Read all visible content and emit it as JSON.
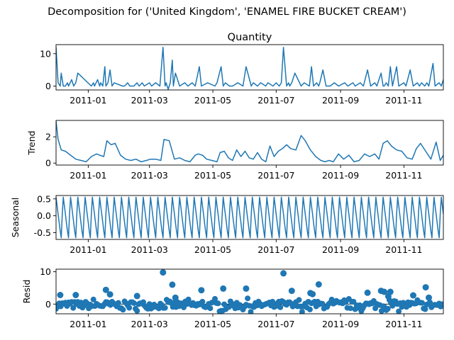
{
  "title": "Decomposition for ('United Kingdom', 'ENAMEL FIRE BUCKET CREAM')",
  "colors": {
    "line": "#1f77b4",
    "marker": "#1f77b4",
    "axis": "#000000",
    "zero": "#000000"
  },
  "chart_data": [
    {
      "type": "line",
      "title": "Quantity",
      "ylabel": "",
      "xlim": [
        "2010-12-01",
        "2011-12-09"
      ],
      "ylim": [
        -1.2,
        12.8
      ],
      "yticks": [
        0,
        10
      ],
      "xticks": [
        "2011-01",
        "2011-03",
        "2011-05",
        "2011-07",
        "2011-09",
        "2011-11"
      ],
      "x": [
        "2010-12-01",
        "2010-12-03",
        "2010-12-05",
        "2010-12-06",
        "2010-12-08",
        "2010-12-10",
        "2010-12-12",
        "2010-12-13",
        "2010-12-16",
        "2010-12-18",
        "2010-12-20",
        "2010-12-22",
        "2011-01-04",
        "2011-01-06",
        "2011-01-07",
        "2011-01-10",
        "2011-01-12",
        "2011-01-13",
        "2011-01-15",
        "2011-01-17",
        "2011-01-18",
        "2011-01-20",
        "2011-01-22",
        "2011-01-24",
        "2011-01-26",
        "2011-02-03",
        "2011-02-05",
        "2011-02-08",
        "2011-02-10",
        "2011-02-14",
        "2011-02-17",
        "2011-02-19",
        "2011-02-22",
        "2011-02-24",
        "2011-03-01",
        "2011-03-03",
        "2011-03-07",
        "2011-03-11",
        "2011-03-14",
        "2011-03-16",
        "2011-03-17",
        "2011-03-19",
        "2011-03-21",
        "2011-03-23",
        "2011-03-24",
        "2011-03-26",
        "2011-03-30",
        "2011-04-04",
        "2011-04-07",
        "2011-04-11",
        "2011-04-14",
        "2011-04-18",
        "2011-04-20",
        "2011-04-26",
        "2011-05-03",
        "2011-05-05",
        "2011-05-09",
        "2011-05-11",
        "2011-05-13",
        "2011-05-17",
        "2011-05-20",
        "2011-05-25",
        "2011-05-30",
        "2011-06-02",
        "2011-06-07",
        "2011-06-09",
        "2011-06-13",
        "2011-06-16",
        "2011-06-21",
        "2011-06-23",
        "2011-06-28",
        "2011-07-01",
        "2011-07-04",
        "2011-07-06",
        "2011-07-08",
        "2011-07-11",
        "2011-07-13",
        "2011-07-14",
        "2011-07-16",
        "2011-07-19",
        "2011-07-25",
        "2011-07-28",
        "2011-08-02",
        "2011-08-04",
        "2011-08-06",
        "2011-08-09",
        "2011-08-11",
        "2011-08-12",
        "2011-08-15",
        "2011-08-18",
        "2011-08-22",
        "2011-08-26",
        "2011-08-30",
        "2011-09-05",
        "2011-09-08",
        "2011-09-13",
        "2011-09-15",
        "2011-09-20",
        "2011-09-23",
        "2011-09-27",
        "2011-09-30",
        "2011-10-04",
        "2011-10-06",
        "2011-10-10",
        "2011-10-12",
        "2011-10-13",
        "2011-10-15",
        "2011-10-17",
        "2011-10-19",
        "2011-10-21",
        "2011-10-25",
        "2011-10-27",
        "2011-11-01",
        "2011-11-03",
        "2011-11-07",
        "2011-11-10",
        "2011-11-14",
        "2011-11-16",
        "2011-11-18",
        "2011-11-21",
        "2011-11-23",
        "2011-11-25",
        "2011-11-29",
        "2011-12-01",
        "2011-12-05",
        "2011-12-07",
        "2011-12-09"
      ],
      "values": [
        12,
        1,
        0,
        4,
        0,
        0,
        1,
        0,
        2,
        0,
        1,
        4,
        0,
        1,
        0,
        2,
        0,
        1,
        0,
        6,
        0,
        1,
        5,
        0,
        1,
        0,
        0,
        1,
        0,
        0,
        1,
        0,
        1,
        0,
        1,
        0,
        1,
        0,
        12,
        0,
        1,
        -1,
        1,
        8,
        0,
        4,
        0,
        1,
        0,
        1,
        0,
        6,
        0,
        1,
        0,
        1,
        6,
        0,
        1,
        0,
        0,
        1,
        0,
        6,
        0,
        1,
        0,
        1,
        0,
        1,
        0,
        1,
        0,
        1,
        12,
        0,
        1,
        0,
        1,
        4,
        0,
        1,
        0,
        6,
        0,
        1,
        0,
        1,
        5,
        0,
        0,
        1,
        0,
        1,
        0,
        1,
        0,
        1,
        0,
        5,
        0,
        1,
        0,
        4,
        0,
        0,
        1,
        0,
        6,
        0,
        6,
        0,
        1,
        0,
        5,
        0,
        1,
        0,
        1,
        0,
        1,
        0,
        7,
        0,
        1,
        0,
        2
      ]
    },
    {
      "type": "line",
      "title": "",
      "ylabel": "Trend",
      "xlim": [
        "2010-12-01",
        "2011-12-09"
      ],
      "ylim": [
        -0.15,
        3.25
      ],
      "yticks": [
        0,
        2
      ],
      "xticks": [
        "2011-01",
        "2011-03",
        "2011-05",
        "2011-07",
        "2011-09",
        "2011-11"
      ],
      "x": [
        "2010-12-01",
        "2010-12-03",
        "2010-12-06",
        "2010-12-10",
        "2010-12-15",
        "2010-12-20",
        "2010-12-25",
        "2010-12-30",
        "2011-01-04",
        "2011-01-09",
        "2011-01-12",
        "2011-01-16",
        "2011-01-19",
        "2011-01-23",
        "2011-01-27",
        "2011-02-01",
        "2011-02-06",
        "2011-02-11",
        "2011-02-16",
        "2011-02-21",
        "2011-02-26",
        "2011-03-02",
        "2011-03-07",
        "2011-03-12",
        "2011-03-15",
        "2011-03-20",
        "2011-03-25",
        "2011-03-30",
        "2011-04-04",
        "2011-04-09",
        "2011-04-14",
        "2011-04-17",
        "2011-04-21",
        "2011-04-25",
        "2011-04-30",
        "2011-05-05",
        "2011-05-08",
        "2011-05-12",
        "2011-05-16",
        "2011-05-20",
        "2011-05-24",
        "2011-05-28",
        "2011-06-01",
        "2011-06-05",
        "2011-06-09",
        "2011-06-13",
        "2011-06-17",
        "2011-06-21",
        "2011-06-25",
        "2011-06-29",
        "2011-07-03",
        "2011-07-07",
        "2011-07-11",
        "2011-07-15",
        "2011-07-20",
        "2011-07-25",
        "2011-07-29",
        "2011-08-03",
        "2011-08-08",
        "2011-08-13",
        "2011-08-17",
        "2011-08-21",
        "2011-08-25",
        "2011-08-30",
        "2011-09-04",
        "2011-09-09",
        "2011-09-14",
        "2011-09-19",
        "2011-09-24",
        "2011-09-29",
        "2011-10-04",
        "2011-10-08",
        "2011-10-12",
        "2011-10-16",
        "2011-10-20",
        "2011-10-25",
        "2011-10-30",
        "2011-11-04",
        "2011-11-09",
        "2011-11-13",
        "2011-11-17",
        "2011-11-22",
        "2011-11-27",
        "2011-12-02",
        "2011-12-06",
        "2011-12-09"
      ],
      "values": [
        3.2,
        1.8,
        1.0,
        0.9,
        0.6,
        0.3,
        0.2,
        0.1,
        0.5,
        0.7,
        0.6,
        0.5,
        1.7,
        1.4,
        1.5,
        0.6,
        0.3,
        0.2,
        0.3,
        0.1,
        0.2,
        0.3,
        0.3,
        0.2,
        1.8,
        1.7,
        0.3,
        0.4,
        0.2,
        0.1,
        0.6,
        0.7,
        0.6,
        0.3,
        0.2,
        0.1,
        0.8,
        0.9,
        0.4,
        0.2,
        1.0,
        0.5,
        0.9,
        0.4,
        0.3,
        0.8,
        0.3,
        0.1,
        1.3,
        0.5,
        0.9,
        1.1,
        1.4,
        1.1,
        1.0,
        2.1,
        1.7,
        1.0,
        0.5,
        0.2,
        0.1,
        0.2,
        0.1,
        0.7,
        0.3,
        0.6,
        0.1,
        0.2,
        0.7,
        0.5,
        0.7,
        0.3,
        1.5,
        1.7,
        1.3,
        1.0,
        0.9,
        0.4,
        0.3,
        1.1,
        1.5,
        0.9,
        0.3,
        1.6,
        0.2,
        0.6
      ]
    },
    {
      "type": "line",
      "title": "",
      "ylabel": "Seasonal",
      "xlim": [
        "2010-12-01",
        "2011-12-09"
      ],
      "ylim": [
        -0.7,
        0.6
      ],
      "yticks": [
        -0.5,
        0.0,
        0.5
      ],
      "xticks": [
        "2011-01",
        "2011-03",
        "2011-05",
        "2011-07",
        "2011-09",
        "2011-11"
      ],
      "period_days": 7,
      "pattern": [
        0.55,
        0.3,
        0.05,
        -0.2,
        -0.45,
        -0.65,
        0.05
      ]
    },
    {
      "type": "scatter",
      "title": "",
      "ylabel": "Resid",
      "xlim": [
        "2010-12-01",
        "2011-12-09"
      ],
      "ylim": [
        -3,
        10.8
      ],
      "yticks": [
        0,
        10
      ],
      "xticks": [
        "2011-01",
        "2011-03",
        "2011-05",
        "2011-07",
        "2011-09",
        "2011-11"
      ],
      "highlights": [
        {
          "x": "2010-12-05",
          "y": 2.8
        },
        {
          "x": "2010-12-20",
          "y": 2.8
        },
        {
          "x": "2011-01-18",
          "y": 4.4
        },
        {
          "x": "2011-01-22",
          "y": 3.0
        },
        {
          "x": "2011-02-17",
          "y": 2.5
        },
        {
          "x": "2011-03-14",
          "y": 9.8
        },
        {
          "x": "2011-03-23",
          "y": 6.0
        },
        {
          "x": "2011-03-26",
          "y": 2.0
        },
        {
          "x": "2011-04-20",
          "y": 4.3
        },
        {
          "x": "2011-05-11",
          "y": 4.8
        },
        {
          "x": "2011-06-02",
          "y": 4.8
        },
        {
          "x": "2011-07-08",
          "y": 9.5
        },
        {
          "x": "2011-07-16",
          "y": 4.1
        },
        {
          "x": "2011-08-03",
          "y": 3.4
        },
        {
          "x": "2011-08-05",
          "y": 3.1
        },
        {
          "x": "2011-08-11",
          "y": 6.1
        },
        {
          "x": "2011-09-27",
          "y": 3.5
        },
        {
          "x": "2011-10-10",
          "y": 4.1
        },
        {
          "x": "2011-10-13",
          "y": 3.8
        },
        {
          "x": "2011-10-17",
          "y": 2.4
        },
        {
          "x": "2011-10-19",
          "y": 3.8
        },
        {
          "x": "2011-11-10",
          "y": 2.7
        },
        {
          "x": "2011-11-22",
          "y": 5.2
        },
        {
          "x": "2011-11-25",
          "y": 2.0
        }
      ],
      "baseline_band": [
        -2.4,
        1.8
      ]
    }
  ]
}
